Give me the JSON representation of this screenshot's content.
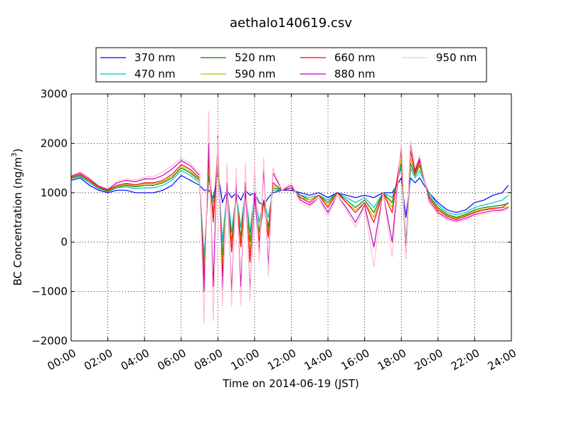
{
  "chart_data": {
    "type": "line",
    "title": "aethalo140619.csv",
    "xlabel": "Time on 2014-06-19 (JST)",
    "ylabel": "BC Concentration (ng/m³)",
    "ylabel_parts": {
      "main": "BC Concentration (ng/m",
      "sup": "3",
      "close": ")"
    },
    "xlim": [
      "00:00",
      "24:00"
    ],
    "ylim": [
      -2000,
      3000
    ],
    "xticks": [
      "00:00",
      "02:00",
      "04:00",
      "06:00",
      "08:00",
      "10:00",
      "12:00",
      "14:00",
      "16:00",
      "18:00",
      "20:00",
      "22:00",
      "24:00"
    ],
    "yticks": [
      -2000,
      -1000,
      0,
      1000,
      2000,
      3000
    ],
    "ytick_labels": [
      "−2000",
      "−1000",
      "0",
      "1000",
      "2000",
      "3000"
    ],
    "grid": true,
    "legend_position": "top",
    "colors": {
      "370 nm": "#0000ff",
      "470 nm": "#00bfbf",
      "520 nm": "#008000",
      "590 nm": "#bfbf00",
      "660 nm": "#ff0000",
      "880 nm": "#bf00bf",
      "950 nm": "#ffc0cb"
    },
    "x": [
      "00:00",
      "00:30",
      "01:00",
      "01:30",
      "02:00",
      "02:30",
      "03:00",
      "03:30",
      "04:00",
      "04:30",
      "05:00",
      "05:30",
      "06:00",
      "06:30",
      "07:00",
      "07:15",
      "07:30",
      "07:45",
      "08:00",
      "08:15",
      "08:30",
      "08:45",
      "09:00",
      "09:15",
      "09:30",
      "09:45",
      "10:00",
      "10:15",
      "10:30",
      "10:45",
      "11:00",
      "11:30",
      "12:00",
      "12:30",
      "13:00",
      "13:30",
      "14:00",
      "14:30",
      "15:00",
      "15:30",
      "16:00",
      "16:30",
      "17:00",
      "17:30",
      "18:00",
      "18:15",
      "18:30",
      "18:45",
      "19:00",
      "19:30",
      "20:00",
      "20:30",
      "21:00",
      "21:30",
      "22:00",
      "22:30",
      "23:00",
      "23:30",
      "23:50"
    ],
    "series": [
      {
        "name": "370 nm",
        "values": [
          1250,
          1300,
          1150,
          1050,
          1000,
          1050,
          1050,
          1000,
          1000,
          1000,
          1050,
          1150,
          1350,
          1250,
          1150,
          1050,
          1050,
          900,
          1400,
          800,
          1050,
          900,
          1000,
          850,
          1050,
          950,
          1000,
          800,
          750,
          900,
          1000,
          1050,
          1050,
          1000,
          950,
          1000,
          900,
          1000,
          950,
          900,
          950,
          900,
          1000,
          1000,
          1300,
          500,
          1300,
          1200,
          1300,
          1000,
          800,
          650,
          600,
          650,
          800,
          850,
          950,
          1000,
          1150
        ]
      },
      {
        "name": "470 nm",
        "values": [
          1280,
          1330,
          1200,
          1080,
          1020,
          1100,
          1120,
          1080,
          1100,
          1100,
          1150,
          1250,
          1450,
          1350,
          1200,
          -300,
          1300,
          800,
          1500,
          0,
          1100,
          200,
          1000,
          300,
          1050,
          200,
          1000,
          400,
          850,
          500,
          1050,
          1050,
          1100,
          950,
          900,
          950,
          850,
          1000,
          900,
          800,
          900,
          700,
          1000,
          900,
          1500,
          0,
          1500,
          1300,
          1450,
          1000,
          750,
          600,
          550,
          600,
          700,
          750,
          800,
          850,
          950
        ]
      },
      {
        "name": "520 nm",
        "values": [
          1300,
          1350,
          1230,
          1100,
          1030,
          1120,
          1150,
          1120,
          1150,
          1150,
          1200,
          1300,
          1500,
          1400,
          1250,
          -500,
          1400,
          600,
          1600,
          -300,
          1100,
          0,
          1000,
          100,
          1050,
          0,
          1000,
          200,
          850,
          300,
          1100,
          1050,
          1100,
          950,
          850,
          950,
          800,
          1000,
          850,
          700,
          850,
          600,
          1000,
          800,
          1600,
          -200,
          1600,
          1350,
          1550,
          950,
          700,
          560,
          500,
          560,
          650,
          700,
          720,
          750,
          780
        ]
      },
      {
        "name": "590 nm",
        "values": [
          1310,
          1360,
          1240,
          1110,
          1040,
          1130,
          1170,
          1140,
          1180,
          1180,
          1220,
          1330,
          1530,
          1430,
          1270,
          -600,
          1500,
          500,
          1700,
          -500,
          1100,
          -100,
          1000,
          0,
          1050,
          -200,
          1000,
          100,
          850,
          200,
          1150,
          1050,
          1100,
          900,
          850,
          950,
          750,
          1000,
          800,
          650,
          800,
          500,
          1000,
          700,
          1700,
          -250,
          1700,
          1380,
          1600,
          920,
          680,
          540,
          480,
          540,
          620,
          670,
          690,
          700,
          720
        ]
      },
      {
        "name": "660 nm",
        "values": [
          1320,
          1370,
          1250,
          1120,
          1050,
          1150,
          1190,
          1160,
          1200,
          1200,
          1250,
          1370,
          1570,
          1470,
          1300,
          -800,
          1700,
          400,
          1900,
          -700,
          1100,
          -200,
          1000,
          -100,
          1050,
          -400,
          1000,
          0,
          850,
          100,
          1200,
          1050,
          1100,
          900,
          800,
          950,
          700,
          1000,
          800,
          600,
          800,
          400,
          1000,
          600,
          1850,
          -300,
          1850,
          1400,
          1650,
          900,
          650,
          520,
          460,
          520,
          600,
          650,
          680,
          700,
          800
        ]
      },
      {
        "name": "880 nm",
        "values": [
          1340,
          1400,
          1280,
          1140,
          1060,
          1200,
          1250,
          1220,
          1280,
          1280,
          1350,
          1480,
          1650,
          1550,
          1350,
          -1000,
          2000,
          -900,
          2150,
          -1000,
          1200,
          -1000,
          1200,
          -900,
          1200,
          -1000,
          1000,
          -200,
          1500,
          -500,
          1400,
          1050,
          1150,
          850,
          750,
          900,
          600,
          950,
          700,
          400,
          750,
          -100,
          1000,
          0,
          2000,
          -300,
          2000,
          1450,
          1700,
          850,
          600,
          480,
          430,
          480,
          560,
          600,
          640,
          650,
          700
        ]
      },
      {
        "name": "950 nm",
        "values": [
          1350,
          1420,
          1300,
          1150,
          1080,
          1230,
          1280,
          1260,
          1320,
          1330,
          1420,
          1550,
          1700,
          1600,
          1400,
          -1650,
          2650,
          -1600,
          2100,
          -1300,
          1600,
          -1300,
          1500,
          -1300,
          1600,
          -1200,
          1600,
          -400,
          1700,
          -700,
          1500,
          1050,
          1200,
          800,
          700,
          900,
          500,
          950,
          650,
          300,
          700,
          -500,
          1000,
          -300,
          2050,
          -350,
          2050,
          1500,
          1750,
          800,
          550,
          450,
          400,
          450,
          520,
          560,
          600,
          630,
          650
        ]
      }
    ]
  }
}
